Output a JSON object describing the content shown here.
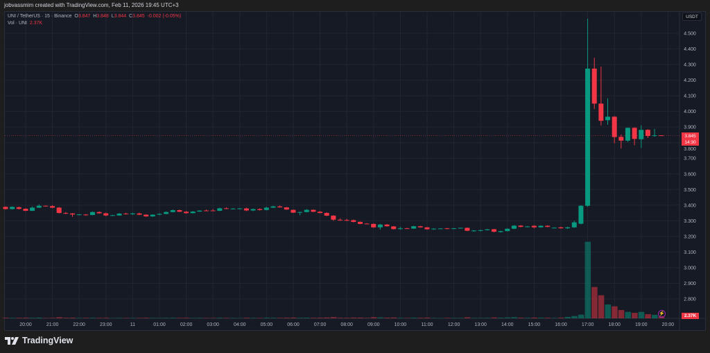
{
  "credit": "jobvassmim created with TradingView.com, Feb 11, 2026 19:45 UTC+3",
  "legend": {
    "symbol": "UNI / TetherUS · 15 · Binance",
    "o_label": "O",
    "o": "3.847",
    "h_label": "H",
    "h": "3.848",
    "l_label": "L",
    "l": "3.844",
    "c_label": "C",
    "c": "3.845",
    "change": "-0.002 (-0.05%)",
    "vol_label": "Vol · UNI",
    "vol": "2.37K"
  },
  "price_axis": {
    "unit": "USDT",
    "last_price": "3.845",
    "countdown": "14:30",
    "volume_tag": "2.37K"
  },
  "brand": "TradingView",
  "colors": {
    "up": "#089981",
    "down": "#f23645",
    "background": "#161a25"
  },
  "chart_data": {
    "type": "candlestick",
    "interval": "15",
    "y_ticks": [
      "4.500",
      "4.400",
      "4.300",
      "4.200",
      "4.100",
      "4.000",
      "3.900",
      "3.800",
      "3.700",
      "3.600",
      "3.500",
      "3.400",
      "3.300",
      "3.200",
      "3.100",
      "3.000",
      "2.900",
      "2.800"
    ],
    "ylim": [
      2.8,
      4.5
    ],
    "x_ticks": [
      "20:00",
      "21:00",
      "22:00",
      "23:00",
      "11",
      "01:00",
      "02:00",
      "03:00",
      "04:00",
      "05:00",
      "06:00",
      "07:00",
      "08:00",
      "09:00",
      "10:00",
      "11:00",
      "12:00",
      "13:00",
      "14:00",
      "15:00",
      "16:00",
      "17:00",
      "18:00",
      "19:00",
      "20:00"
    ],
    "grid": true,
    "ohlc": [
      [
        3.389,
        3.392,
        3.372,
        3.375
      ],
      [
        3.375,
        3.392,
        3.372,
        3.389
      ],
      [
        3.387,
        3.39,
        3.372,
        3.376
      ],
      [
        3.377,
        3.38,
        3.362,
        3.364
      ],
      [
        3.364,
        3.392,
        3.362,
        3.384
      ],
      [
        3.384,
        3.405,
        3.382,
        3.396
      ],
      [
        3.396,
        3.399,
        3.392,
        3.393
      ],
      [
        3.394,
        3.4,
        3.381,
        3.384
      ],
      [
        3.384,
        3.388,
        3.347,
        3.35
      ],
      [
        3.35,
        3.356,
        3.342,
        3.349
      ],
      [
        3.347,
        3.35,
        3.325,
        3.34
      ],
      [
        3.338,
        3.343,
        3.334,
        3.341
      ],
      [
        3.34,
        3.343,
        3.332,
        3.337
      ],
      [
        3.337,
        3.36,
        3.335,
        3.356
      ],
      [
        3.356,
        3.36,
        3.345,
        3.348
      ],
      [
        3.348,
        3.352,
        3.33,
        3.334
      ],
      [
        3.334,
        3.338,
        3.33,
        3.336
      ],
      [
        3.334,
        3.35,
        3.332,
        3.346
      ],
      [
        3.346,
        3.352,
        3.34,
        3.342
      ],
      [
        3.342,
        3.352,
        3.338,
        3.347
      ],
      [
        3.347,
        3.352,
        3.336,
        3.339
      ],
      [
        3.339,
        3.342,
        3.325,
        3.328
      ],
      [
        3.328,
        3.342,
        3.325,
        3.339
      ],
      [
        3.339,
        3.348,
        3.336,
        3.344
      ],
      [
        3.344,
        3.36,
        3.342,
        3.356
      ],
      [
        3.356,
        3.372,
        3.354,
        3.368
      ],
      [
        3.368,
        3.372,
        3.356,
        3.358
      ],
      [
        3.358,
        3.362,
        3.346,
        3.349
      ],
      [
        3.349,
        3.362,
        3.347,
        3.359
      ],
      [
        3.359,
        3.368,
        3.357,
        3.365
      ],
      [
        3.366,
        3.372,
        3.362,
        3.364
      ],
      [
        3.366,
        3.375,
        3.362,
        3.364
      ],
      [
        3.364,
        3.384,
        3.362,
        3.38
      ],
      [
        3.38,
        3.386,
        3.374,
        3.377
      ],
      [
        3.377,
        3.382,
        3.374,
        3.378
      ],
      [
        3.378,
        3.382,
        3.374,
        3.379
      ],
      [
        3.379,
        3.384,
        3.362,
        3.366
      ],
      [
        3.366,
        3.378,
        3.362,
        3.375
      ],
      [
        3.375,
        3.38,
        3.366,
        3.369
      ],
      [
        3.369,
        3.389,
        3.367,
        3.384
      ],
      [
        3.384,
        3.396,
        3.382,
        3.392
      ],
      [
        3.392,
        3.398,
        3.384,
        3.386
      ],
      [
        3.386,
        3.388,
        3.37,
        3.372
      ],
      [
        3.37,
        3.372,
        3.35,
        3.352
      ],
      [
        3.352,
        3.358,
        3.335,
        3.356
      ],
      [
        3.356,
        3.375,
        3.354,
        3.37
      ],
      [
        3.37,
        3.373,
        3.356,
        3.358
      ],
      [
        3.358,
        3.362,
        3.348,
        3.35
      ],
      [
        3.35,
        3.354,
        3.33,
        3.333
      ],
      [
        3.333,
        3.336,
        3.3,
        3.307
      ],
      [
        3.307,
        3.315,
        3.3,
        3.305
      ],
      [
        3.305,
        3.312,
        3.298,
        3.303
      ],
      [
        3.304,
        3.308,
        3.29,
        3.293
      ],
      [
        3.293,
        3.296,
        3.278,
        3.28
      ],
      [
        3.282,
        3.285,
        3.278,
        3.28
      ],
      [
        3.28,
        3.283,
        3.255,
        3.258
      ],
      [
        3.258,
        3.28,
        3.243,
        3.276
      ],
      [
        3.276,
        3.279,
        3.262,
        3.265
      ],
      [
        3.264,
        3.266,
        3.244,
        3.247
      ],
      [
        3.247,
        3.262,
        3.244,
        3.252
      ],
      [
        3.252,
        3.255,
        3.248,
        3.25
      ],
      [
        3.25,
        3.268,
        3.248,
        3.265
      ],
      [
        3.265,
        3.268,
        3.256,
        3.258
      ],
      [
        3.258,
        3.26,
        3.243,
        3.246
      ],
      [
        3.246,
        3.252,
        3.242,
        3.25
      ],
      [
        3.25,
        3.253,
        3.248,
        3.251
      ],
      [
        3.252,
        3.254,
        3.246,
        3.248
      ],
      [
        3.248,
        3.254,
        3.246,
        3.252
      ],
      [
        3.252,
        3.256,
        3.25,
        3.255
      ],
      [
        3.255,
        3.258,
        3.234,
        3.236
      ],
      [
        3.236,
        3.24,
        3.23,
        3.238
      ],
      [
        3.238,
        3.242,
        3.232,
        3.24
      ],
      [
        3.24,
        3.248,
        3.238,
        3.245
      ],
      [
        3.246,
        3.248,
        3.226,
        3.23
      ],
      [
        3.228,
        3.236,
        3.224,
        3.234
      ],
      [
        3.234,
        3.252,
        3.232,
        3.249
      ],
      [
        3.249,
        3.272,
        3.247,
        3.269
      ],
      [
        3.269,
        3.272,
        3.258,
        3.261
      ],
      [
        3.261,
        3.267,
        3.258,
        3.264
      ],
      [
        3.268,
        3.272,
        3.252,
        3.258
      ],
      [
        3.258,
        3.27,
        3.256,
        3.268
      ],
      [
        3.268,
        3.271,
        3.258,
        3.261
      ],
      [
        3.255,
        3.258,
        3.252,
        3.256
      ],
      [
        3.258,
        3.262,
        3.25,
        3.252
      ],
      [
        3.252,
        3.262,
        3.248,
        3.258
      ],
      [
        3.258,
        3.3,
        3.255,
        3.29
      ],
      [
        3.281,
        3.4,
        3.278,
        3.396
      ],
      [
        3.396,
        4.593,
        3.39,
        4.274
      ],
      [
        4.274,
        4.343,
        4.015,
        4.05
      ],
      [
        4.05,
        4.287,
        3.91,
        3.94
      ],
      [
        3.944,
        4.084,
        3.914,
        3.966
      ],
      [
        3.966,
        3.97,
        3.796,
        3.836
      ],
      [
        3.837,
        3.852,
        3.763,
        3.813
      ],
      [
        3.813,
        3.897,
        3.805,
        3.895
      ],
      [
        3.895,
        3.898,
        3.784,
        3.824
      ],
      [
        3.822,
        3.911,
        3.766,
        3.882
      ],
      [
        3.882,
        3.886,
        3.83,
        3.843
      ],
      [
        3.843,
        3.888,
        3.838,
        3.847
      ],
      [
        3.847,
        3.848,
        3.844,
        3.845
      ]
    ],
    "volume_k": [
      0.6,
      0.5,
      0.6,
      0.7,
      0.6,
      0.8,
      0.4,
      0.5,
      1.2,
      0.6,
      0.7,
      0.4,
      0.5,
      0.6,
      0.5,
      0.6,
      0.3,
      0.5,
      0.4,
      0.4,
      0.5,
      0.6,
      0.5,
      0.4,
      0.5,
      0.6,
      0.5,
      0.6,
      0.4,
      0.5,
      0.4,
      0.4,
      0.6,
      0.5,
      0.4,
      0.3,
      0.6,
      0.5,
      0.4,
      0.7,
      0.6,
      0.5,
      0.7,
      0.8,
      0.6,
      0.7,
      0.6,
      0.7,
      0.9,
      1.3,
      0.6,
      0.6,
      0.8,
      0.8,
      0.5,
      1.2,
      1.0,
      0.7,
      0.9,
      0.5,
      0.4,
      0.7,
      0.6,
      0.8,
      0.4,
      0.3,
      0.5,
      0.4,
      0.4,
      1.1,
      0.4,
      0.4,
      0.5,
      0.9,
      0.7,
      0.9,
      1.2,
      0.7,
      0.6,
      0.8,
      0.7,
      0.6,
      0.4,
      0.7,
      1.5,
      2.5,
      4.0,
      83,
      34,
      25,
      15,
      13,
      9,
      7,
      6,
      7,
      4.5,
      3.8,
      2.37
    ]
  }
}
